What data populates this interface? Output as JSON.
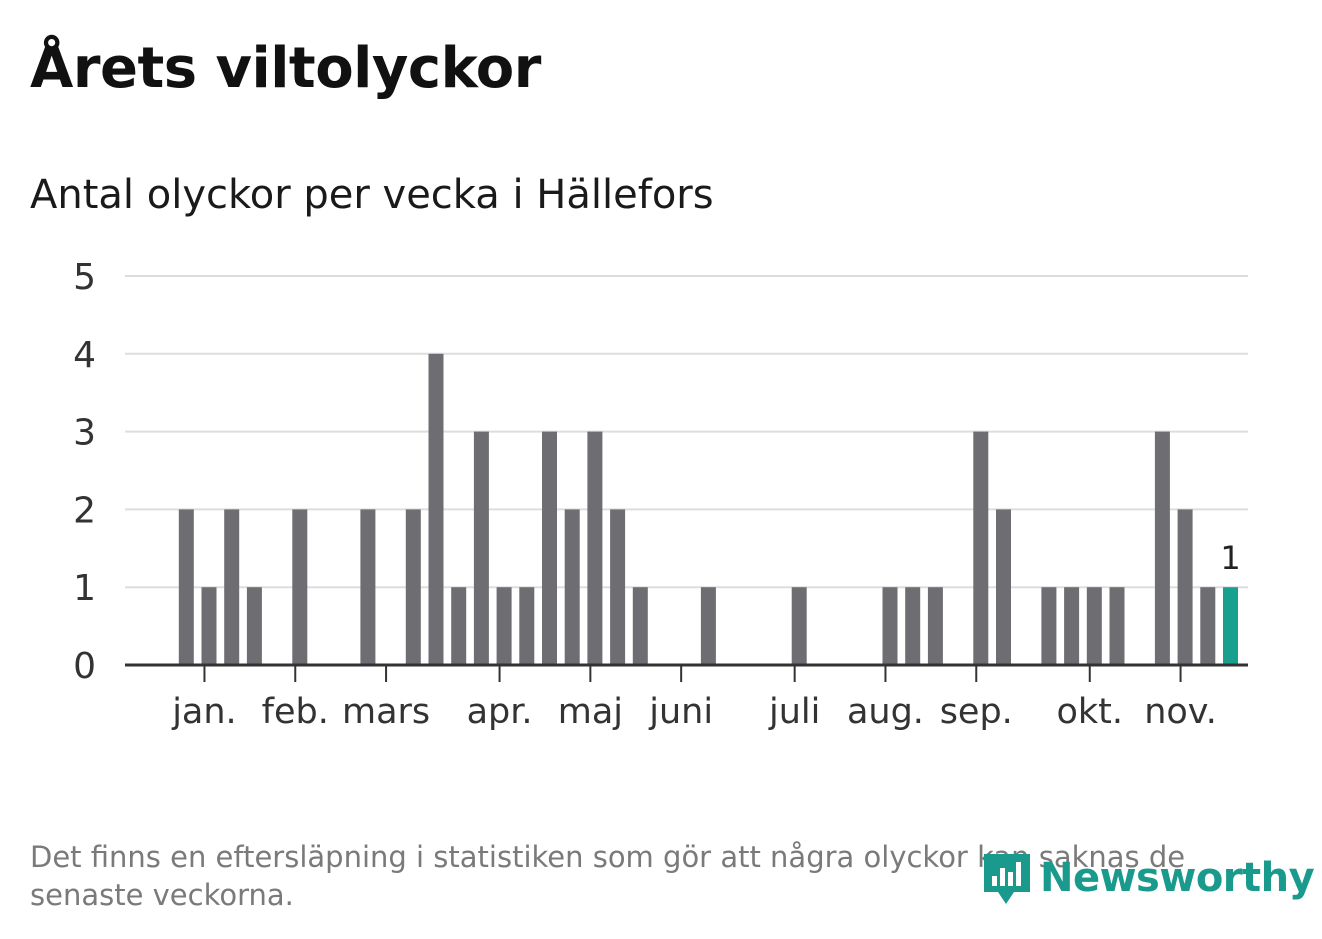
{
  "title": "Årets viltolyckor",
  "chart_data": {
    "type": "bar",
    "title": "Antal olyckor per vecka i Hällefors",
    "xlabel": "",
    "ylabel": "",
    "ylim": [
      0,
      5
    ],
    "yticks": [
      "0",
      "1",
      "2",
      "3",
      "4",
      "5"
    ],
    "weeks": [
      1,
      2,
      3,
      4,
      5,
      6,
      7,
      8,
      9,
      10,
      11,
      12,
      13,
      14,
      15,
      16,
      17,
      18,
      19,
      20,
      21,
      22,
      23,
      24,
      25,
      26,
      27,
      28,
      29,
      30,
      31,
      32,
      33,
      34,
      35,
      36,
      37,
      38,
      39,
      40,
      41,
      42,
      43,
      44,
      45,
      46,
      47
    ],
    "values": [
      2,
      1,
      2,
      1,
      0,
      2,
      0,
      0,
      2,
      0,
      2,
      4,
      1,
      3,
      1,
      1,
      3,
      2,
      3,
      2,
      1,
      0,
      0,
      1,
      0,
      0,
      0,
      1,
      0,
      0,
      0,
      1,
      1,
      1,
      0,
      3,
      2,
      0,
      1,
      1,
      1,
      1,
      0,
      3,
      2,
      1,
      1
    ],
    "month_labels": [
      {
        "label": "jan.",
        "week": 1.8
      },
      {
        "label": "feb.",
        "week": 5.8
      },
      {
        "label": "mars",
        "week": 9.8
      },
      {
        "label": "apr.",
        "week": 14.8
      },
      {
        "label": "maj",
        "week": 18.8
      },
      {
        "label": "juni",
        "week": 22.8
      },
      {
        "label": "juli",
        "week": 27.8
      },
      {
        "label": "aug.",
        "week": 31.8
      },
      {
        "label": "sep.",
        "week": 35.8
      },
      {
        "label": "okt.",
        "week": 40.8
      },
      {
        "label": "nov.",
        "week": 44.8
      }
    ],
    "highlight_index": 46,
    "highlight_label": "1",
    "bar_color": "#6e6d72",
    "highlight_color": "#18a08f",
    "grid": true
  },
  "footnote": "Det finns en eftersläpning i statistiken som gör att några olyckor kan saknas de senaste veckorna.",
  "logo": {
    "text": "Newsworthy",
    "color": "#1a9a8c"
  }
}
